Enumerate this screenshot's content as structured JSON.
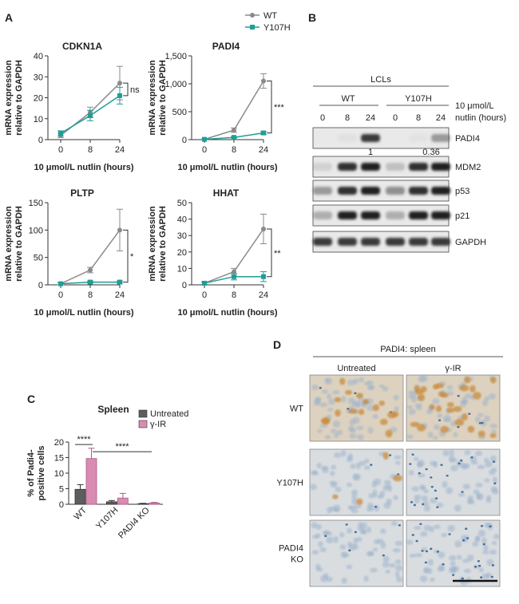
{
  "colors": {
    "wt": "#8a8a8a",
    "y107h": "#1f9e96",
    "untreated": "#5d5d5d",
    "gamma_ir": "#d98cb1"
  },
  "panel_letters": {
    "a": "A",
    "b": "B",
    "c": "C",
    "d": "D"
  },
  "legend_a": {
    "wt": "WT",
    "y107h": "Y107H"
  },
  "chart_data": [
    {
      "type": "line",
      "panel": "A",
      "title": "CDKN1A",
      "xlabel": "10 μmol/L nutlin (hours)",
      "ylabel": [
        "mRNA expression",
        "relative to GAPDH"
      ],
      "categories": [
        "0",
        "8",
        "24"
      ],
      "yticks": [
        "0",
        "10",
        "20",
        "30",
        "40"
      ],
      "ylim": [
        0,
        40
      ],
      "series": [
        {
          "name": "WT",
          "values": [
            2,
            13,
            27
          ],
          "errors": [
            1,
            2.5,
            8
          ]
        },
        {
          "name": "Y107H",
          "values": [
            3,
            11.5,
            21
          ],
          "errors": [
            1.2,
            2.5,
            4
          ]
        }
      ],
      "significance": "ns"
    },
    {
      "type": "line",
      "panel": "A",
      "title": "PADI4",
      "xlabel": "10 μmol/L nutlin (hours)",
      "ylabel": [
        "mRNA expression",
        "relative to GAPDH"
      ],
      "categories": [
        "0",
        "8",
        "24"
      ],
      "yticks": [
        "0",
        "500",
        "1,000",
        "1,500"
      ],
      "ylim": [
        0,
        1500
      ],
      "series": [
        {
          "name": "WT",
          "values": [
            5,
            170,
            1050
          ],
          "errors": [
            5,
            40,
            130
          ]
        },
        {
          "name": "Y107H",
          "values": [
            5,
            40,
            120
          ],
          "errors": [
            5,
            10,
            25
          ]
        }
      ],
      "significance": "***"
    },
    {
      "type": "line",
      "panel": "A",
      "title": "PLTP",
      "xlabel": "10 μmol/L nutlin (hours)",
      "ylabel": [
        "mRNA expression",
        "relative to GAPDH"
      ],
      "categories": [
        "0",
        "8",
        "24"
      ],
      "yticks": [
        "0",
        "50",
        "100",
        "150"
      ],
      "ylim": [
        0,
        150
      ],
      "series": [
        {
          "name": "WT",
          "values": [
            2,
            27,
            100
          ],
          "errors": [
            2,
            5,
            38
          ]
        },
        {
          "name": "Y107H",
          "values": [
            2,
            5,
            5
          ],
          "errors": [
            2,
            2,
            2
          ]
        }
      ],
      "significance": "*"
    },
    {
      "type": "line",
      "panel": "A",
      "title": "HHAT",
      "xlabel": "10 μmol/L nutlin (hours)",
      "ylabel": [
        "mRNA expression",
        "relative to GAPDH"
      ],
      "categories": [
        "0",
        "8",
        "24"
      ],
      "yticks": [
        "0",
        "10",
        "20",
        "30",
        "40",
        "50"
      ],
      "ylim": [
        0,
        50
      ],
      "series": [
        {
          "name": "WT",
          "values": [
            1,
            8,
            34
          ],
          "errors": [
            0.8,
            2,
            9
          ]
        },
        {
          "name": "Y107H",
          "values": [
            1,
            5,
            5
          ],
          "errors": [
            0.8,
            2,
            3
          ]
        }
      ],
      "significance": "**"
    },
    {
      "type": "bar",
      "panel": "C",
      "title": "Spleen",
      "ylabel": [
        "% of Padi4-",
        "positive cells"
      ],
      "categories": [
        "WT",
        "Y107H",
        "PADI4 KO"
      ],
      "yticks": [
        "0",
        "5",
        "10",
        "15",
        "20"
      ],
      "ylim": [
        0,
        20
      ],
      "series": [
        {
          "name": "Untreated",
          "values": [
            4.8,
            0.8,
            0.2
          ],
          "errors": [
            1.5,
            0.4,
            0.1
          ]
        },
        {
          "name": "γ-IR",
          "values": [
            14.7,
            2.0,
            0.4
          ],
          "errors": [
            3.3,
            1.5,
            0.2
          ]
        }
      ],
      "significance": [
        "****",
        "****"
      ]
    }
  ],
  "blot": {
    "group_title": "LCLs",
    "genotypes": [
      "WT",
      "Y107H"
    ],
    "lanes": [
      "0",
      "8",
      "24",
      "0",
      "8",
      "24"
    ],
    "treatment_label": [
      "10 μmol/L",
      "nutlin (hours)"
    ],
    "rows": [
      "PADI4",
      "MDM2",
      "p53",
      "p21",
      "GAPDH"
    ],
    "quant": [
      "1",
      "0.36"
    ]
  },
  "histology": {
    "title": "PADI4: spleen",
    "columns": [
      "Untreated",
      "γ-IR"
    ],
    "rows": [
      "WT",
      "Y107H",
      "PADI4\nKO"
    ]
  }
}
